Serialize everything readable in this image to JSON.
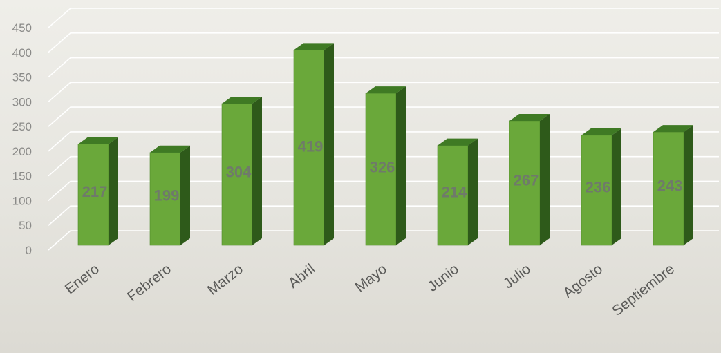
{
  "chart_data": {
    "type": "bar",
    "title": "",
    "xlabel": "",
    "ylabel": "",
    "categories": [
      "Enero",
      "Febrero",
      "Marzo",
      "Abril",
      "Mayo",
      "Junio",
      "Julio",
      "Agosto",
      "Septiembre"
    ],
    "values": [
      217,
      199,
      304,
      419,
      326,
      214,
      267,
      236,
      243
    ],
    "data_labels": [
      "217",
      "199",
      "304",
      "419",
      "326",
      "214",
      "267",
      "236",
      "243"
    ],
    "ylim": [
      0,
      450
    ],
    "yticks": [
      "0",
      "50",
      "100",
      "150",
      "200",
      "250",
      "300",
      "350",
      "400",
      "450"
    ],
    "grid": true,
    "legend": "none",
    "style": "3d-column",
    "colors": {
      "bar_front": "#6aa83a",
      "bar_side": "#2e5a1a",
      "bar_top": "#3f7a24",
      "grid": "#ffffff",
      "tick_text": "#8a8a88",
      "category_text": "#5a5a58",
      "data_label_text": "#6f7a6a"
    }
  }
}
